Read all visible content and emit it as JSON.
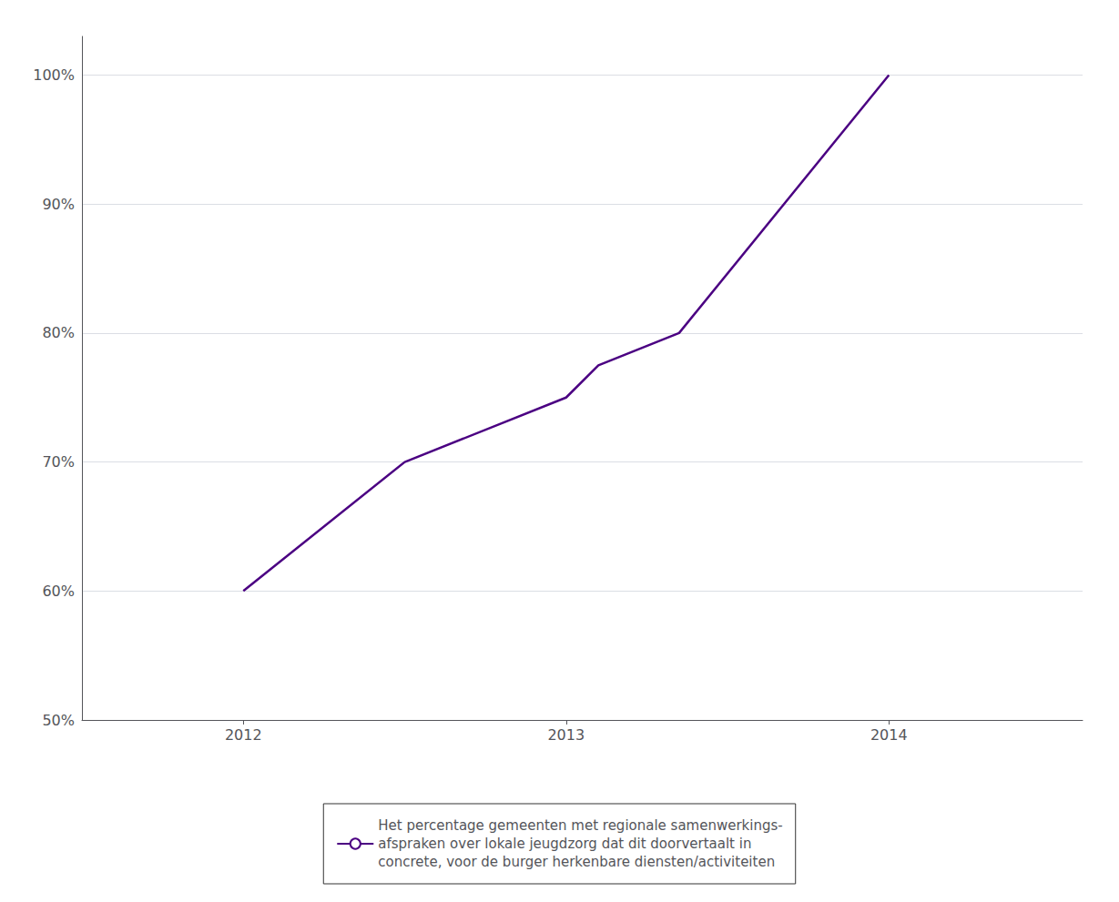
{
  "chart_data": {
    "type": "line",
    "x": [
      2012.0,
      2012.5,
      2013.0,
      2013.1,
      2013.35,
      2014.0
    ],
    "series": [
      {
        "name": "Het percentage gemeenten met regionale samenwerkings-\nafspraken over lokale jeugdzorg dat dit doorvertaalt in\nconcrete, voor de burger herkenbare diensten/activiteiten",
        "color": "#4B0082",
        "values": [
          0.6,
          0.7,
          0.75,
          0.775,
          0.8,
          1.0
        ]
      }
    ],
    "xlim": [
      2011.5,
      2014.6
    ],
    "xticks": [
      2012,
      2013,
      2014
    ],
    "ylim": [
      0.5,
      1.03
    ],
    "yticks": [
      {
        "value": 0.5,
        "label": "50%"
      },
      {
        "value": 0.6,
        "label": "60%"
      },
      {
        "value": 0.7,
        "label": "70%"
      },
      {
        "value": 0.8,
        "label": "80%"
      },
      {
        "value": 0.9,
        "label": "90%"
      },
      {
        "value": 1.0,
        "label": "100%"
      }
    ],
    "grid": true,
    "legend": "bottom"
  }
}
